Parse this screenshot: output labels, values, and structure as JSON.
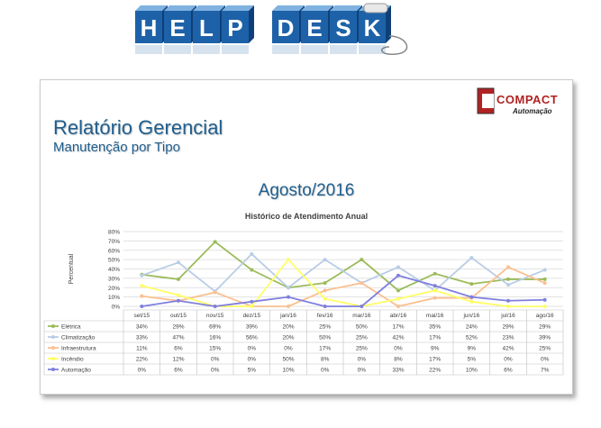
{
  "banner": {
    "letters": [
      "H",
      "E",
      "L",
      "P",
      "D",
      "E",
      "S",
      "K"
    ]
  },
  "logo": {
    "name": "COMPACT",
    "sub": "Automação"
  },
  "report": {
    "title": "Relatório Gerencial",
    "subtitle": "Manutenção por Tipo",
    "period": "Agosto/2016"
  },
  "colors": {
    "Elétrica": "#9bbb59",
    "Climatização": "#b9cde5",
    "Infraestrutura": "#fac090",
    "Incêndio": "#ffff66",
    "Automação": "#7f7fdf",
    "title": "#1f5f8f"
  },
  "chart_data": {
    "type": "line",
    "title": "Histórico de Atendimento Anual",
    "xlabel": "",
    "ylabel": "Percentual",
    "ylim": [
      0,
      80
    ],
    "yticks": [
      "0%",
      "10%",
      "20%",
      "30%",
      "40%",
      "50%",
      "60%",
      "70%",
      "80%"
    ],
    "grid": true,
    "legend": "table-below",
    "categories": [
      "set/15",
      "out/15",
      "nov/15",
      "dez/15",
      "jan/16",
      "fev/16",
      "mar/16",
      "abr/16",
      "mai/16",
      "jun/16",
      "jul/16",
      "ago/16"
    ],
    "series": [
      {
        "name": "Elétrica",
        "values": [
          34,
          29,
          69,
          39,
          20,
          25,
          50,
          17,
          35,
          24,
          29,
          29
        ],
        "labels": [
          "34%",
          "29%",
          "69%",
          "39%",
          "20%",
          "25%",
          "50%",
          "17%",
          "35%",
          "24%",
          "29%",
          "29%"
        ]
      },
      {
        "name": "Climatização",
        "values": [
          33,
          47,
          16,
          56,
          20,
          50,
          25,
          42,
          17,
          52,
          23,
          39
        ],
        "labels": [
          "33%",
          "47%",
          "16%",
          "56%",
          "20%",
          "50%",
          "25%",
          "42%",
          "17%",
          "52%",
          "23%",
          "39%"
        ]
      },
      {
        "name": "Infraestrutura",
        "values": [
          11,
          6,
          15,
          0,
          0,
          17,
          25,
          0,
          9,
          9,
          42,
          25
        ],
        "labels": [
          "11%",
          "6%",
          "15%",
          "0%",
          "0%",
          "17%",
          "25%",
          "0%",
          "9%",
          "9%",
          "42%",
          "25%"
        ]
      },
      {
        "name": "Incêndio",
        "values": [
          22,
          12,
          0,
          0,
          50,
          8,
          0,
          8,
          17,
          5,
          0,
          0
        ],
        "labels": [
          "22%",
          "12%",
          "0%",
          "0%",
          "50%",
          "8%",
          "0%",
          "8%",
          "17%",
          "5%",
          "0%",
          "0%"
        ]
      },
      {
        "name": "Automação",
        "values": [
          0,
          6,
          0,
          5,
          10,
          0,
          0,
          33,
          22,
          10,
          6,
          7
        ],
        "labels": [
          "0%",
          "6%",
          "0%",
          "5%",
          "10%",
          "0%",
          "0%",
          "33%",
          "22%",
          "10%",
          "6%",
          "7%"
        ]
      }
    ]
  }
}
